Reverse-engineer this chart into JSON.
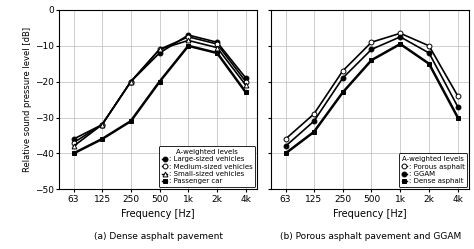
{
  "frequencies": [
    63,
    125,
    250,
    500,
    1000,
    2000,
    4000
  ],
  "freq_labels": [
    "63",
    "125",
    "250",
    "500",
    "1k",
    "2k",
    "4k"
  ],
  "ylim": [
    -50,
    0
  ],
  "yticks": [
    0,
    -10,
    -20,
    -30,
    -40,
    -50
  ],
  "ylabel": "Relative sound pressure level [dB]",
  "xlabel": "Frequency [Hz]",
  "caption_a": "(a) Dense asphalt pavement",
  "caption_b": "(b) Porous asphalt pavement and GGAM",
  "legend_title": "A-weighted levels",
  "plot_a": {
    "series": [
      {
        "label": "Large-sized vehicles",
        "marker": "o",
        "marker_fill": "full",
        "lw": 1.2,
        "values": [
          -36,
          -32,
          -20,
          -12,
          -7,
          -9,
          -19
        ]
      },
      {
        "label": "Medium-sized vehicles",
        "marker": "o",
        "marker_fill": "open",
        "lw": 1.2,
        "values": [
          -37,
          -32,
          -20,
          -11,
          -7.5,
          -9.5,
          -20
        ]
      },
      {
        "label": "Small-sized vehicles",
        "marker": "^",
        "marker_fill": "open",
        "lw": 1.2,
        "values": [
          -38,
          -32,
          -20,
          -11,
          -8.5,
          -10.5,
          -21
        ]
      },
      {
        "label": "Passenger car",
        "marker": "s",
        "marker_fill": "full",
        "lw": 1.8,
        "values": [
          -40,
          -36,
          -31,
          -20,
          -10,
          -12,
          -23
        ]
      }
    ]
  },
  "plot_b": {
    "series": [
      {
        "label": "Porous asphalt",
        "marker": "o",
        "marker_fill": "open",
        "lw": 1.2,
        "values": [
          -36,
          -29,
          -17,
          -9,
          -6.5,
          -10,
          -24
        ]
      },
      {
        "label": "GGAM",
        "marker": "o",
        "marker_fill": "full",
        "lw": 1.2,
        "values": [
          -38,
          -31,
          -19,
          -11,
          -7.5,
          -12,
          -27
        ]
      },
      {
        "label": "Dense asphalt",
        "marker": "s",
        "marker_fill": "full",
        "lw": 1.8,
        "values": [
          -40,
          -34,
          -23,
          -14,
          -9.5,
          -15,
          -30
        ]
      }
    ]
  }
}
